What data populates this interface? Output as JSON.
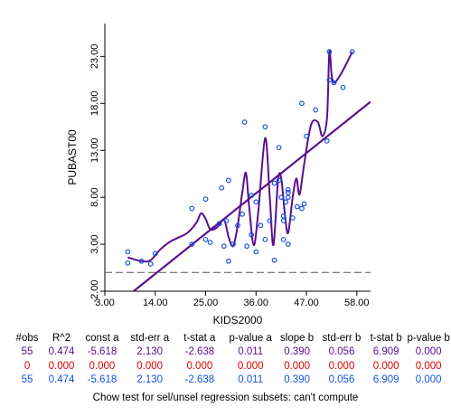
{
  "chart_data": {
    "type": "scatter",
    "xlabel": "KIDS2000",
    "ylabel": "PUBAST00",
    "xlim": [
      3.0,
      61.0
    ],
    "ylim": [
      -2.0,
      26.5
    ],
    "x_ticks": [
      "3.00",
      "14.00",
      "25.00",
      "36.00",
      "47.00",
      "58.00"
    ],
    "y_ticks": [
      "-2.00",
      "3.00",
      "8.00",
      "13.00",
      "18.00",
      "23.00"
    ],
    "grid": false,
    "points": [
      [
        8.0,
        2.2
      ],
      [
        8.0,
        1.0
      ],
      [
        11.0,
        1.2
      ],
      [
        13.0,
        0.9
      ],
      [
        14.0,
        2.0
      ],
      [
        22.0,
        6.8
      ],
      [
        22.0,
        3.0
      ],
      [
        25.0,
        7.8
      ],
      [
        25.0,
        3.5
      ],
      [
        26.0,
        3.2
      ],
      [
        28.0,
        5.2
      ],
      [
        28.5,
        9.0
      ],
      [
        29.0,
        2.8
      ],
      [
        29.5,
        5.5
      ],
      [
        30.0,
        1.2
      ],
      [
        30.0,
        9.8
      ],
      [
        31.0,
        3.0
      ],
      [
        32.0,
        5.0
      ],
      [
        33.0,
        6.2
      ],
      [
        33.5,
        16.0
      ],
      [
        34.0,
        2.8
      ],
      [
        35.0,
        8.2
      ],
      [
        35.0,
        4.0
      ],
      [
        36.0,
        7.5
      ],
      [
        36.0,
        2.2
      ],
      [
        37.0,
        5.0
      ],
      [
        38.0,
        15.5
      ],
      [
        38.0,
        3.5
      ],
      [
        39.0,
        5.5
      ],
      [
        40.0,
        1.3
      ],
      [
        40.0,
        9.5
      ],
      [
        41.0,
        13.3
      ],
      [
        41.0,
        9.8
      ],
      [
        41.5,
        8.0
      ],
      [
        42.0,
        5.5
      ],
      [
        42.0,
        3.5
      ],
      [
        42.5,
        7.5
      ],
      [
        42.0,
        6.0
      ],
      [
        43.0,
        8.5
      ],
      [
        43.0,
        8.0
      ],
      [
        43.0,
        8.8
      ],
      [
        43.0,
        3.0
      ],
      [
        44.0,
        5.8
      ],
      [
        45.0,
        7.0
      ],
      [
        46.0,
        6.8
      ],
      [
        46.5,
        7.3
      ],
      [
        46.0,
        18.0
      ],
      [
        47.0,
        14.5
      ],
      [
        49.0,
        17.3
      ],
      [
        51.5,
        14.0
      ],
      [
        52.0,
        23.5
      ],
      [
        52.0,
        20.5
      ],
      [
        53.0,
        20.2
      ],
      [
        55.0,
        19.7
      ],
      [
        57.0,
        23.5
      ]
    ],
    "regression_line": {
      "slope": 0.39,
      "intercept": -5.618
    },
    "smooth_curve": [
      [
        8.0,
        1.6
      ],
      [
        11.0,
        1.2
      ],
      [
        13.0,
        1.3
      ],
      [
        15.0,
        2.4
      ],
      [
        17.0,
        3.2
      ],
      [
        19.0,
        3.7
      ],
      [
        21.0,
        4.2
      ],
      [
        23.0,
        5.3
      ],
      [
        24.0,
        6.3
      ],
      [
        25.0,
        5.7
      ],
      [
        26.0,
        4.6
      ],
      [
        27.5,
        4.8
      ],
      [
        29.0,
        5.6
      ],
      [
        30.0,
        3.8
      ],
      [
        31.0,
        2.8
      ],
      [
        32.0,
        5.0
      ],
      [
        33.0,
        8.5
      ],
      [
        33.8,
        10.6
      ],
      [
        34.5,
        7.0
      ],
      [
        35.5,
        2.9
      ],
      [
        36.5,
        6.5
      ],
      [
        38.0,
        14.3
      ],
      [
        39.0,
        8.0
      ],
      [
        39.8,
        2.9
      ],
      [
        40.8,
        9.8
      ],
      [
        41.5,
        10.0
      ],
      [
        42.3,
        6.2
      ],
      [
        43.0,
        4.2
      ],
      [
        44.0,
        8.0
      ],
      [
        44.8,
        10.0
      ],
      [
        45.5,
        8.3
      ],
      [
        46.5,
        11.5
      ],
      [
        48.0,
        15.7
      ],
      [
        49.5,
        16.0
      ],
      [
        50.5,
        14.5
      ],
      [
        51.5,
        16.5
      ],
      [
        52.0,
        23.5
      ],
      [
        52.5,
        21.0
      ],
      [
        53.0,
        20.2
      ],
      [
        54.0,
        20.7
      ],
      [
        55.5,
        22.0
      ],
      [
        57.0,
        23.5
      ]
    ],
    "reference_y": 0.0,
    "colors": {
      "points": "#1553e0",
      "regression": "#5a0f8c",
      "smooth": "#5a0f8c",
      "reference": "#555555"
    }
  },
  "stats": {
    "headers": [
      "#obs",
      "R^2",
      "const a",
      "std-err a",
      "t-stat a",
      "p-value a",
      "slope b",
      "std-err b",
      "t-stat b",
      "p-value b"
    ],
    "rows": [
      {
        "color": "#5a0f8c",
        "values": [
          "55",
          "0.474",
          "-5.618",
          "2.130",
          "-2.638",
          "0.011",
          "0.390",
          "0.056",
          "6.909",
          "0.000"
        ]
      },
      {
        "color": "#e00000",
        "values": [
          "0",
          "0.000",
          "0.000",
          "0.000",
          "0.000",
          "0.000",
          "0.000",
          "0.000",
          "0.000",
          "0.000"
        ]
      },
      {
        "color": "#1553e0",
        "values": [
          "55",
          "0.474",
          "-5.618",
          "2.130",
          "-2.638",
          "0.011",
          "0.390",
          "0.056",
          "6.909",
          "0.000"
        ]
      }
    ]
  },
  "chow_text": "Chow test for sel/unsel regression subsets: can't compute"
}
